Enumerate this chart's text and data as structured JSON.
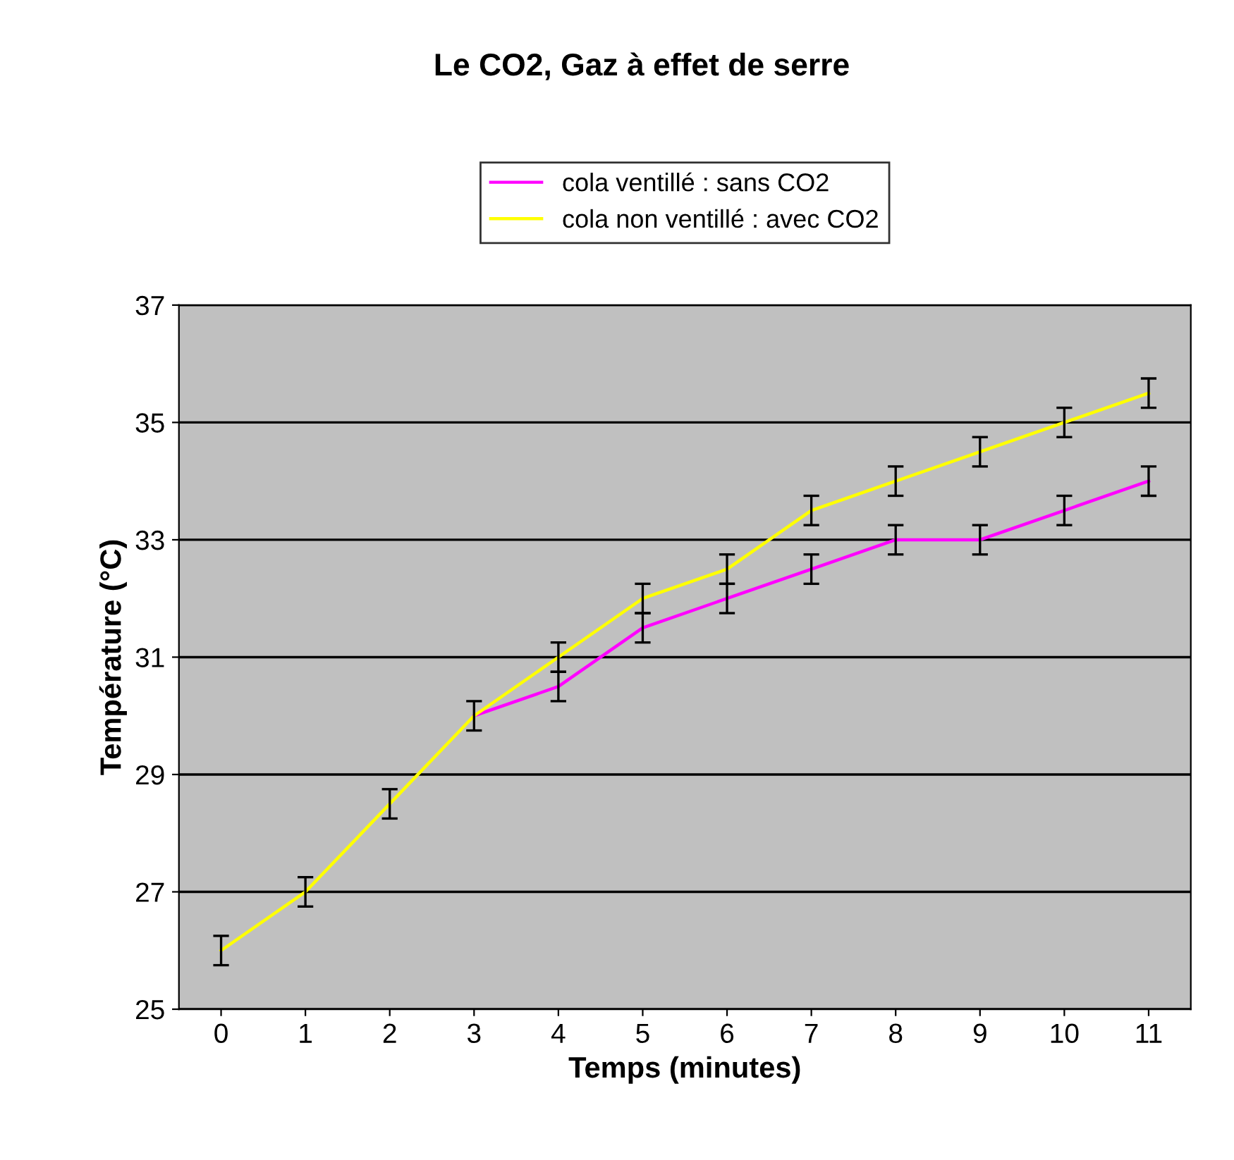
{
  "chart_data": {
    "type": "line",
    "title": "Le CO2, Gaz à effet de serre",
    "xlabel": "Temps (minutes)",
    "ylabel": "Température (°C)",
    "categories": [
      "0",
      "1",
      "2",
      "3",
      "4",
      "5",
      "6",
      "7",
      "8",
      "9",
      "10",
      "11"
    ],
    "series": [
      {
        "name": "cola ventillé : sans CO2",
        "color": "#ff00ff",
        "values": [
          null,
          null,
          null,
          30,
          30.5,
          31.5,
          32,
          32.5,
          33,
          33,
          33.5,
          34
        ],
        "errors": [
          null,
          null,
          null,
          null,
          0.25,
          0.25,
          0.25,
          0.25,
          0.25,
          0.25,
          0.25,
          0.25
        ]
      },
      {
        "name": "cola non ventillé : avec CO2",
        "color": "#ffff00",
        "values": [
          26,
          27,
          28.5,
          30,
          31,
          32,
          32.5,
          33.5,
          34,
          34.5,
          35,
          35.5
        ],
        "errors": [
          0.25,
          0.25,
          0.25,
          0.25,
          0.25,
          0.25,
          0.25,
          0.25,
          0.25,
          0.25,
          0.25,
          0.25
        ]
      }
    ],
    "ylim": [
      25,
      37
    ],
    "yticks": [
      25,
      27,
      29,
      31,
      33,
      35,
      37
    ],
    "grid": "y",
    "legend": "top",
    "marker": "none",
    "line_style": "solid"
  }
}
